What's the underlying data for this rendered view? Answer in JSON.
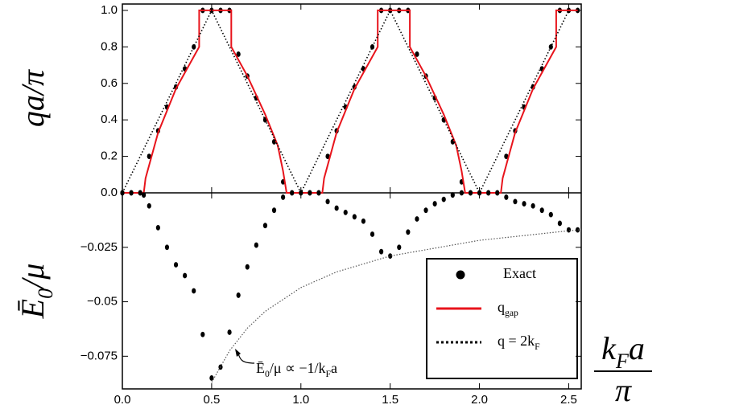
{
  "chart_data": [
    {
      "type": "line",
      "ylabel": "qa/π",
      "xlim": [
        0,
        2.57
      ],
      "ylim": [
        0,
        1.035
      ],
      "xticks": [
        {
          "value": 0,
          "label": "0.0"
        },
        0.5,
        {
          "value": 1,
          "label": "1.0"
        },
        1.5,
        {
          "value": 2,
          "label": "2.0"
        },
        2.5
      ],
      "yticks": [
        {
          "value": 0,
          "label": "0.0"
        },
        0.2,
        0.4,
        0.6,
        0.8,
        {
          "value": 1,
          "label": "1.0"
        }
      ],
      "series": [
        {
          "name": "Exact",
          "style": "dots",
          "color": "#000000",
          "x": [
            0,
            0.05,
            0.1,
            0.15,
            0.2,
            0.25,
            0.3,
            0.35,
            0.4,
            0.45,
            0.5,
            0.55,
            0.6,
            0.65,
            0.7,
            0.75,
            0.8,
            0.85,
            0.9,
            0.95,
            1.0,
            1.05,
            1.1,
            1.15,
            1.2,
            1.25,
            1.3,
            1.35,
            1.4,
            1.45,
            1.5,
            1.55,
            1.6,
            1.65,
            1.7,
            1.75,
            1.8,
            1.85,
            1.9,
            1.95,
            2.0,
            2.05,
            2.1,
            2.15,
            2.2,
            2.25,
            2.3,
            2.35,
            2.4,
            2.45,
            2.5,
            2.55
          ],
          "values": [
            0,
            0,
            0,
            0.2,
            0.34,
            0.47,
            0.58,
            0.68,
            0.8,
            1,
            1,
            1,
            1,
            0.76,
            0.64,
            0.52,
            0.4,
            0.28,
            0.06,
            0,
            0,
            0,
            0,
            0.2,
            0.34,
            0.47,
            0.58,
            0.68,
            0.8,
            1,
            1,
            1,
            1,
            0.76,
            0.64,
            0.52,
            0.4,
            0.28,
            0.06,
            0,
            0,
            0,
            0,
            0.2,
            0.34,
            0.47,
            0.58,
            0.68,
            0.8,
            1,
            1,
            1
          ]
        },
        {
          "name": "q_{gap}",
          "style": "solid",
          "color": "#e8141c",
          "x": [
            0,
            0.12,
            0.13,
            0.2,
            0.3,
            0.43,
            0.43,
            0.61,
            0.61,
            0.7,
            0.8,
            0.87,
            0.9,
            0.92,
            1.12,
            1.13,
            1.2,
            1.3,
            1.43,
            1.43,
            1.61,
            1.61,
            1.7,
            1.8,
            1.87,
            1.9,
            1.92,
            2.12,
            2.13,
            2.2,
            2.3,
            2.43,
            2.43,
            2.55
          ],
          "values": [
            0,
            0,
            0.08,
            0.33,
            0.57,
            0.8,
            1,
            1,
            0.8,
            0.64,
            0.43,
            0.26,
            0.12,
            0,
            0,
            0.08,
            0.33,
            0.57,
            0.8,
            1,
            1,
            0.8,
            0.64,
            0.43,
            0.26,
            0.12,
            0,
            0,
            0.08,
            0.33,
            0.57,
            0.8,
            1,
            1
          ]
        },
        {
          "name": "q = 2k_{F}",
          "style": "dotted",
          "color": "#000000",
          "x": [
            0,
            0.5,
            1,
            1.5,
            2,
            2.5
          ],
          "values": [
            0,
            1,
            0,
            1,
            0,
            1
          ]
        }
      ]
    },
    {
      "type": "line",
      "ylabel": "Ē_{0}/μ",
      "xlabel": {
        "numerator": "k_{F}a",
        "denominator": "π"
      },
      "annotation": "Ē_{0}/μ ∝ −1/k_{F}a",
      "legend": "lower right",
      "xlim": [
        0,
        2.57
      ],
      "ylim": [
        -0.09,
        0
      ],
      "xticks": [
        {
          "value": 0,
          "label": "0.0"
        },
        0.5,
        {
          "value": 1,
          "label": "1.0"
        },
        1.5,
        {
          "value": 2,
          "label": "2.0"
        },
        2.5
      ],
      "yticks": [
        {
          "value": -0.025,
          "label": "−0.025"
        },
        {
          "value": -0.05,
          "label": "−0.05"
        },
        {
          "value": -0.075,
          "label": "−0.075"
        }
      ],
      "series": [
        {
          "style": "dots",
          "color": "#000000",
          "x": [
            0,
            0.05,
            0.1,
            0.12,
            0.15,
            0.2,
            0.25,
            0.3,
            0.35,
            0.4,
            0.45,
            0.5,
            0.55,
            0.6,
            0.65,
            0.7,
            0.75,
            0.8,
            0.85,
            0.9,
            0.95,
            1.0,
            1.05,
            1.1,
            1.15,
            1.2,
            1.25,
            1.3,
            1.35,
            1.4,
            1.45,
            1.5,
            1.55,
            1.6,
            1.65,
            1.7,
            1.75,
            1.8,
            1.85,
            1.9,
            1.95,
            2.0,
            2.05,
            2.1,
            2.15,
            2.2,
            2.25,
            2.3,
            2.35,
            2.4,
            2.45,
            2.5,
            2.55
          ],
          "values": [
            0,
            0,
            0,
            -0.001,
            -0.006,
            -0.016,
            -0.025,
            -0.033,
            -0.038,
            -0.045,
            -0.065,
            -0.085,
            -0.08,
            -0.064,
            -0.047,
            -0.034,
            -0.024,
            -0.015,
            -0.008,
            -0.002,
            0,
            0,
            0,
            0,
            -0.004,
            -0.007,
            -0.009,
            -0.011,
            -0.013,
            -0.019,
            -0.027,
            -0.029,
            -0.025,
            -0.018,
            -0.012,
            -0.008,
            -0.005,
            -0.003,
            -0.001,
            0,
            0,
            0,
            0,
            0,
            -0.002,
            -0.004,
            -0.005,
            -0.006,
            -0.008,
            -0.01,
            -0.014,
            -0.017,
            -0.017
          ]
        },
        {
          "style": "thin-dotted",
          "color": "#555555",
          "x": [
            0.5,
            0.6,
            0.7,
            0.8,
            1.0,
            1.2,
            1.5,
            2.0,
            2.5,
            2.57
          ],
          "values": [
            -0.087,
            -0.0725,
            -0.0621,
            -0.0544,
            -0.0435,
            -0.0363,
            -0.029,
            -0.0218,
            -0.0174,
            -0.0169
          ]
        }
      ]
    }
  ]
}
